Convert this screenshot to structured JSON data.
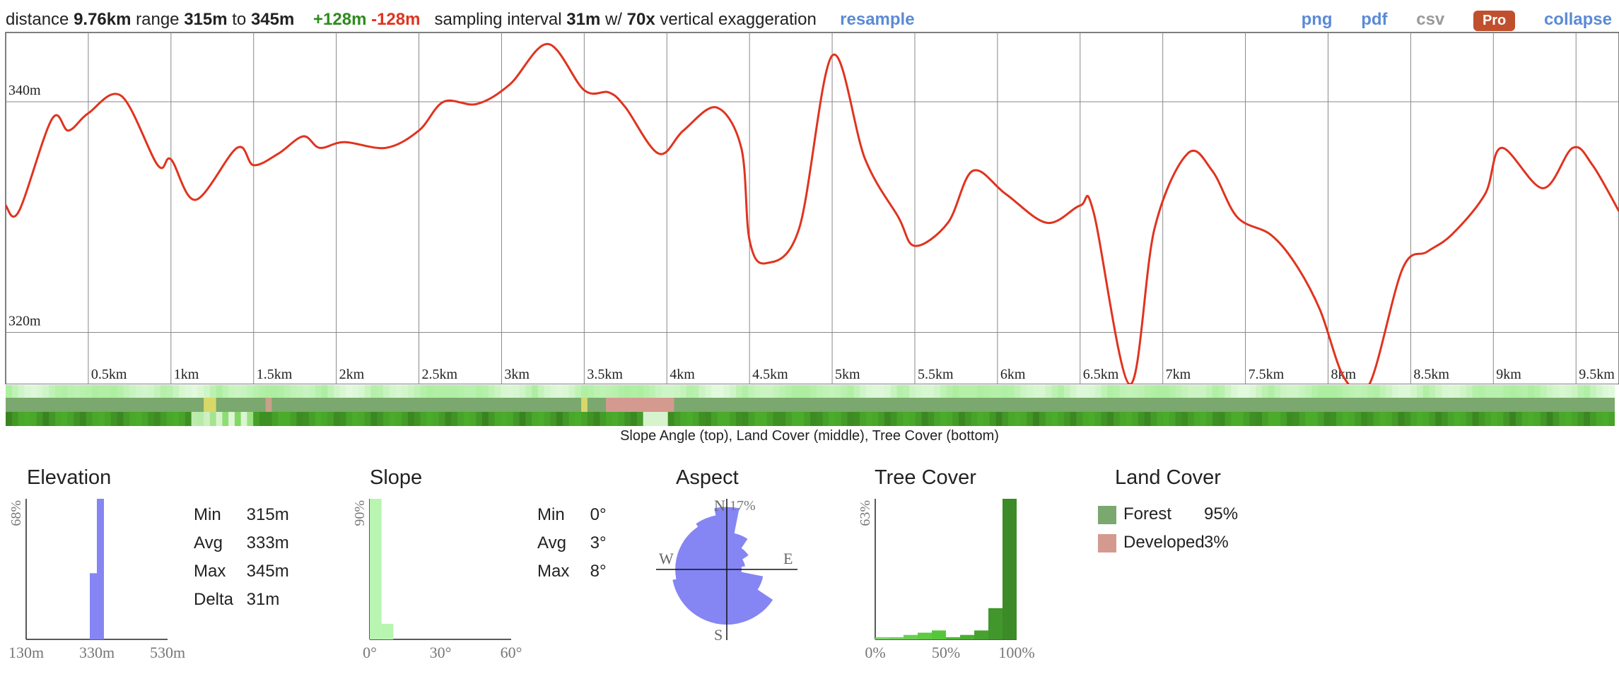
{
  "topbar": {
    "distance_label": "distance",
    "distance_value": "9.76km",
    "range_label": "range",
    "range_min": "315m",
    "range_to": "to",
    "range_max": "345m",
    "gain": "+128m",
    "loss": "-128m",
    "sampling_label": "sampling interval",
    "sampling_value": "31m",
    "w_label": "w/",
    "exaggeration_value": "70x",
    "exaggeration_label": "vertical exaggeration",
    "resample": "resample",
    "png": "png",
    "pdf": "pdf",
    "csv": "csv",
    "pro": "Pro",
    "collapse": "collapse"
  },
  "colors": {
    "line": "#e0331f",
    "link": "#5b8ad6",
    "elevation_bar": "#8585f3",
    "slope_bar": "#b8f5b0",
    "tree_bar": "#3f9b2a",
    "forest": "#7aa86e",
    "developed": "#d49a90"
  },
  "chart_data": [
    {
      "type": "line",
      "title": "",
      "xlabel": "",
      "ylabel": "",
      "x_unit": "km",
      "y_unit": "m",
      "xlim": [
        0,
        9.76
      ],
      "ylim": [
        315.5,
        346
      ],
      "yticks": [
        320,
        340
      ],
      "ytick_labels": [
        "320m",
        "340m"
      ],
      "xticks": [
        0.5,
        1,
        1.5,
        2,
        2.5,
        3,
        3.5,
        4,
        4.5,
        5,
        5.5,
        6,
        6.5,
        7,
        7.5,
        8,
        8.5,
        9,
        9.5
      ],
      "xtick_labels": [
        "0.5km",
        "1km",
        "1.5km",
        "2km",
        "2.5km",
        "3km",
        "3.5km",
        "4km",
        "4.5km",
        "5km",
        "5.5km",
        "6km",
        "6.5km",
        "7km",
        "7.5km",
        "8km",
        "8.5km",
        "9km",
        "9.5km"
      ],
      "grid": true,
      "series": [
        {
          "x": [
            0,
            0.08,
            0.28,
            0.38,
            0.5,
            0.7,
            0.92,
            1.0,
            1.15,
            1.4,
            1.5,
            1.65,
            1.8,
            1.9,
            2.05,
            2.3,
            2.5,
            2.65,
            2.85,
            3.05,
            3.28,
            3.5,
            3.65,
            3.75,
            3.95,
            4.1,
            4.3,
            4.45,
            4.5,
            4.6,
            4.8,
            5.0,
            5.2,
            5.4,
            5.5,
            5.7,
            5.85,
            6.05,
            6.3,
            6.5,
            6.58,
            6.8,
            6.95,
            7.15,
            7.3,
            7.45,
            7.65,
            7.8,
            7.95,
            8.1,
            8.25,
            8.45,
            8.6,
            8.75,
            8.95,
            9.05,
            9.3,
            9.48,
            9.6,
            9.76
          ],
          "y": [
            331,
            330.5,
            338.5,
            337.5,
            339,
            340.5,
            334.5,
            335,
            331.5,
            336,
            334.5,
            335.5,
            337,
            336,
            336.5,
            336,
            337.5,
            340,
            339.8,
            341.5,
            345,
            341,
            340.8,
            339.5,
            335.5,
            337.5,
            339.5,
            336,
            328,
            326,
            329,
            344,
            335,
            330,
            327.5,
            329.5,
            334,
            332,
            329.5,
            331,
            330.5,
            315.5,
            329,
            335.5,
            334,
            330,
            328.5,
            326,
            322,
            316,
            315.5,
            325.5,
            327,
            328.5,
            332,
            336,
            332.5,
            336,
            334.5,
            330.5
          ]
        }
      ]
    },
    {
      "type": "bar",
      "title": "Elevation",
      "ymax_label": "68%",
      "xtick_labels": [
        "130m",
        "330m",
        "530m"
      ],
      "xlim": [
        130,
        530
      ],
      "ylim": [
        0,
        68
      ],
      "bins": [
        {
          "from": 310,
          "to": 330,
          "value": 32
        },
        {
          "from": 330,
          "to": 350,
          "value": 68
        }
      ]
    },
    {
      "type": "bar",
      "title": "Slope",
      "ymax_label": "90%",
      "xtick_labels": [
        "0°",
        "30°",
        "60°"
      ],
      "xlim": [
        0,
        60
      ],
      "ylim": [
        0,
        90
      ],
      "bins": [
        {
          "from": 0,
          "to": 5,
          "value": 90
        },
        {
          "from": 5,
          "to": 10,
          "value": 10
        }
      ]
    },
    {
      "type": "rose",
      "title": "Aspect",
      "max_label": "17%",
      "max_value": 17,
      "directions": [
        "N",
        "E",
        "S",
        "W"
      ],
      "petals_deg_from_north": [
        0,
        22.5,
        45,
        67.5,
        90,
        112.5,
        135,
        157.5,
        180,
        202.5,
        225,
        247.5,
        270,
        292.5,
        315,
        337.5
      ],
      "petals": [
        17,
        10,
        7,
        5,
        4,
        10,
        15,
        15,
        15,
        15,
        15,
        15,
        14,
        14,
        14,
        15
      ]
    },
    {
      "type": "bar",
      "title": "Tree Cover",
      "ymax_label": "63%",
      "xtick_labels": [
        "0%",
        "50%",
        "100%"
      ],
      "xlim": [
        0,
        100
      ],
      "ylim": [
        0,
        63
      ],
      "bins": [
        {
          "from": 0,
          "to": 10,
          "value": 1
        },
        {
          "from": 10,
          "to": 20,
          "value": 1
        },
        {
          "from": 20,
          "to": 30,
          "value": 2
        },
        {
          "from": 30,
          "to": 40,
          "value": 3
        },
        {
          "from": 40,
          "to": 50,
          "value": 4
        },
        {
          "from": 50,
          "to": 60,
          "value": 1
        },
        {
          "from": 60,
          "to": 70,
          "value": 2
        },
        {
          "from": 70,
          "to": 80,
          "value": 4
        },
        {
          "from": 80,
          "to": 90,
          "value": 14
        },
        {
          "from": 90,
          "to": 100,
          "value": 63
        }
      ]
    }
  ],
  "strips": {
    "caption": "Slope Angle (top), Land Cover (middle), Tree Cover (bottom)"
  },
  "elevation_stats": {
    "title": "Elevation",
    "min_label": "Min",
    "min": "315m",
    "avg_label": "Avg",
    "avg": "333m",
    "max_label": "Max",
    "max": "345m",
    "delta_label": "Delta",
    "delta": "31m"
  },
  "slope_stats": {
    "title": "Slope",
    "min_label": "Min",
    "min": "0°",
    "avg_label": "Avg",
    "avg": "3°",
    "max_label": "Max",
    "max": "8°"
  },
  "aspect": {
    "title": "Aspect"
  },
  "tree_cover": {
    "title": "Tree Cover"
  },
  "land_cover": {
    "title": "Land Cover",
    "items": [
      {
        "name": "Forest",
        "pct": "95%",
        "color": "#7aa86e"
      },
      {
        "name": "Developed",
        "pct": "3%",
        "color": "#d49a90"
      }
    ]
  }
}
